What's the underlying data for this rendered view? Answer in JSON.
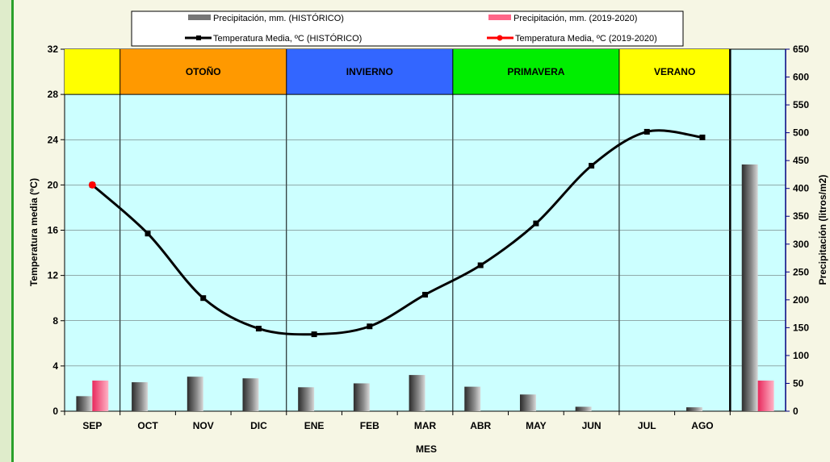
{
  "chart_data": {
    "type": "bar",
    "xlabel": "MES",
    "ylabel": "Temperatura media (ºC)",
    "y2label": "Precipitación (litros/m2)",
    "ylim": [
      0,
      32
    ],
    "y_ticks": [
      0,
      4,
      8,
      12,
      16,
      20,
      24,
      28,
      32
    ],
    "y2lim": [
      0,
      650
    ],
    "y2_ticks": [
      0,
      50,
      100,
      150,
      200,
      250,
      300,
      350,
      400,
      450,
      500,
      550,
      600,
      650
    ],
    "categories": [
      "SEP",
      "OCT",
      "NOV",
      "DIC",
      "ENE",
      "FEB",
      "MAR",
      "ABR",
      "MAY",
      "JUN",
      "JUL",
      "AGO",
      ""
    ],
    "seasons": [
      {
        "label": "",
        "start": 0,
        "end": 1,
        "color": "#ffff00"
      },
      {
        "label": "OTOÑO",
        "start": 1,
        "end": 4,
        "color": "#ff9900"
      },
      {
        "label": "INVIERNO",
        "start": 4,
        "end": 7,
        "color": "#3366ff"
      },
      {
        "label": "PRIMAVERA",
        "start": 7,
        "end": 10,
        "color": "#00ee00"
      },
      {
        "label": "VERANO",
        "start": 10,
        "end": 12,
        "color": "#ffff00"
      }
    ],
    "series": [
      {
        "name": "Precipitación, mm. (HISTÓRICO)",
        "kind": "bar",
        "axis": "right",
        "color": "#555555",
        "values": [
          27,
          52,
          62,
          59,
          43,
          50,
          65,
          44,
          30,
          8,
          0,
          7,
          443
        ]
      },
      {
        "name": "Precipitación, mm. (2019-2020)",
        "kind": "bar",
        "axis": "right",
        "color": "#ff5c8a",
        "values": [
          55,
          null,
          null,
          null,
          null,
          null,
          null,
          null,
          null,
          null,
          null,
          null,
          55
        ]
      },
      {
        "name": "Temperatura Media, ºC (HISTÓRICO)",
        "kind": "line",
        "axis": "left",
        "color": "#000000",
        "values": [
          20.0,
          15.7,
          10.0,
          7.3,
          6.8,
          7.5,
          10.3,
          12.9,
          16.6,
          21.7,
          24.7,
          24.2,
          null
        ]
      },
      {
        "name": "Temperatura Media, ºC (2019-2020)",
        "kind": "line",
        "axis": "left",
        "color": "#ff0000",
        "values": [
          20.0,
          null,
          null,
          null,
          null,
          null,
          null,
          null,
          null,
          null,
          null,
          null,
          null
        ]
      }
    ]
  }
}
